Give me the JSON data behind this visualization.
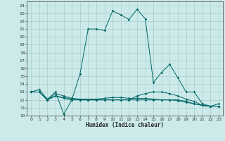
{
  "xlabel": "Humidex (Indice chaleur)",
  "bg_color": "#cceaea",
  "grid_color": "#aacccc",
  "line_color": "#006666",
  "xlim": [
    -0.5,
    23.5
  ],
  "ylim": [
    10,
    24.5
  ],
  "xticks": [
    0,
    1,
    2,
    3,
    4,
    5,
    6,
    7,
    8,
    9,
    10,
    11,
    12,
    13,
    14,
    15,
    16,
    17,
    18,
    19,
    20,
    21,
    22,
    23
  ],
  "yticks": [
    10,
    11,
    12,
    13,
    14,
    15,
    16,
    17,
    18,
    19,
    20,
    21,
    22,
    23,
    24
  ],
  "line1_x": [
    0,
    1,
    2,
    3,
    4,
    5,
    6,
    7,
    8,
    9,
    10,
    11,
    12,
    13,
    14,
    15,
    16,
    17,
    18,
    19,
    20,
    21,
    22,
    23
  ],
  "line1_y": [
    13.0,
    13.3,
    12.1,
    13.0,
    10.2,
    12.0,
    15.3,
    21.0,
    21.0,
    20.8,
    23.3,
    22.8,
    22.2,
    23.5,
    22.3,
    14.2,
    15.5,
    16.5,
    14.8,
    13.0,
    13.0,
    11.5,
    11.2,
    11.5
  ],
  "line2_x": [
    0,
    1,
    2,
    3,
    4,
    5,
    6,
    7,
    8,
    9,
    10,
    11,
    12,
    13,
    14,
    15,
    16,
    17,
    18,
    19,
    20,
    21,
    22,
    23
  ],
  "line2_y": [
    13.0,
    13.0,
    12.0,
    12.8,
    12.5,
    12.2,
    12.1,
    12.1,
    12.1,
    12.2,
    12.3,
    12.3,
    12.2,
    12.2,
    12.2,
    12.1,
    12.0,
    12.0,
    11.9,
    11.7,
    11.5,
    11.3,
    11.2,
    11.2
  ],
  "line3_x": [
    0,
    1,
    2,
    3,
    4,
    5,
    6,
    7,
    8,
    9,
    10,
    11,
    12,
    13,
    14,
    15,
    16,
    17,
    18,
    19,
    20,
    21,
    22,
    23
  ],
  "line3_y": [
    13.0,
    13.0,
    12.0,
    12.5,
    12.3,
    12.1,
    12.0,
    12.0,
    12.0,
    12.0,
    12.0,
    12.0,
    12.0,
    12.5,
    12.8,
    13.0,
    13.0,
    12.8,
    12.5,
    12.1,
    11.8,
    11.3,
    11.2,
    11.2
  ],
  "line4_x": [
    0,
    1,
    2,
    3,
    4,
    5,
    6,
    7,
    8,
    9,
    10,
    11,
    12,
    13,
    14,
    15,
    16,
    17,
    18,
    19,
    20,
    21,
    22,
    23
  ],
  "line4_y": [
    13.0,
    13.0,
    12.0,
    12.5,
    12.2,
    12.0,
    12.0,
    12.0,
    12.0,
    12.0,
    12.0,
    12.0,
    12.0,
    12.0,
    12.0,
    12.0,
    12.0,
    12.0,
    12.0,
    11.8,
    11.5,
    11.3,
    11.2,
    11.2
  ],
  "tick_fontsize": 4.5,
  "label_fontsize": 5.5
}
